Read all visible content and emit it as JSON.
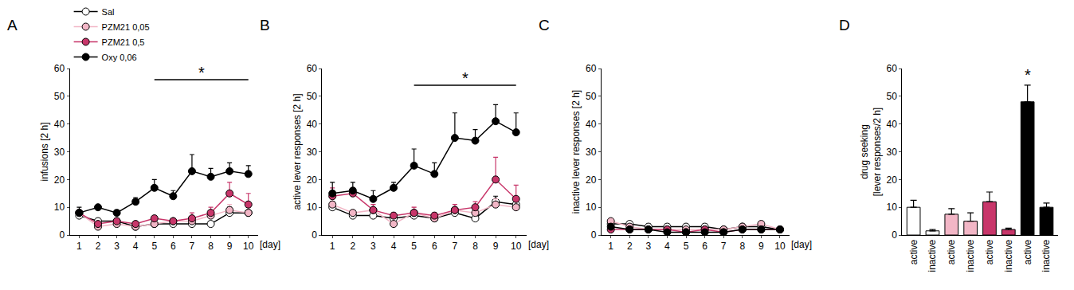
{
  "chart_data": [
    {
      "type": "line",
      "title": "A",
      "y_label": "infusions [2 h]",
      "x_label": "[day]",
      "x": [
        1,
        2,
        3,
        4,
        5,
        6,
        7,
        8,
        9,
        10
      ],
      "xlim": [
        0.5,
        10.5
      ],
      "xticks": [
        1,
        2,
        3,
        4,
        5,
        6,
        7,
        8,
        9,
        10
      ],
      "ylim": [
        0,
        60
      ],
      "yticks": [
        0,
        10,
        20,
        30,
        40,
        50,
        60
      ],
      "grid": false,
      "legend": "top left",
      "series": [
        {
          "name": "Sal",
          "color": "#ffffff",
          "values": [
            7,
            5,
            5,
            3,
            4,
            4,
            4,
            4,
            8,
            8
          ],
          "errors": [
            1,
            1,
            1,
            1,
            1,
            1,
            1,
            1,
            2,
            2
          ]
        },
        {
          "name": "PZM21 0,05",
          "color": "#f2b6c6",
          "values": [
            8,
            3,
            4,
            3,
            4,
            5,
            5,
            7,
            9,
            8
          ],
          "errors": [
            1,
            1,
            1,
            1,
            1,
            1,
            1,
            2,
            2,
            2
          ]
        },
        {
          "name": "PZM21 0,5",
          "color": "#c8366a",
          "values": [
            8,
            4,
            5,
            4,
            6,
            5,
            6,
            8,
            15,
            11
          ],
          "errors": [
            1,
            1,
            1,
            1,
            1,
            1,
            2,
            2,
            4,
            4
          ]
        },
        {
          "name": "Oxy 0,06",
          "color": "#000000",
          "values": [
            8,
            10,
            8,
            12,
            17,
            14,
            23,
            21,
            23,
            22
          ],
          "errors": [
            2,
            1,
            1,
            1.5,
            3,
            2,
            6,
            3,
            3,
            3
          ]
        }
      ],
      "annotations": [
        {
          "text": "*",
          "x": [
            5,
            10
          ],
          "y": 56
        }
      ]
    },
    {
      "type": "line",
      "title": "B",
      "y_label": "active lever responses [2 h]",
      "x_label": "[day]",
      "x": [
        1,
        2,
        3,
        4,
        5,
        6,
        7,
        8,
        9,
        10
      ],
      "xlim": [
        0.5,
        10.5
      ],
      "xticks": [
        1,
        2,
        3,
        4,
        5,
        6,
        7,
        8,
        9,
        10
      ],
      "ylim": [
        0,
        60
      ],
      "yticks": [
        0,
        10,
        20,
        30,
        40,
        50,
        60
      ],
      "grid": false,
      "series": [
        {
          "name": "Sal",
          "color": "#ffffff",
          "values": [
            10,
            7,
            7,
            6,
            7,
            6,
            8,
            6,
            12,
            11
          ],
          "errors": [
            2,
            1,
            1,
            1,
            1,
            1,
            2,
            1,
            2,
            2
          ]
        },
        {
          "name": "PZM21 0,05",
          "color": "#f2b6c6",
          "values": [
            11,
            8,
            9,
            4,
            8,
            6,
            9,
            8,
            11,
            10
          ],
          "errors": [
            2,
            1,
            2,
            1,
            2,
            1,
            2,
            2,
            2,
            2
          ]
        },
        {
          "name": "PZM21 0,5",
          "color": "#c8366a",
          "values": [
            14,
            15,
            9,
            7,
            8,
            7,
            9,
            10,
            20,
            13
          ],
          "errors": [
            3,
            2,
            2,
            1,
            2,
            1,
            2,
            2,
            8,
            5
          ]
        },
        {
          "name": "Oxy 0,06",
          "color": "#000000",
          "values": [
            15,
            16,
            13,
            17,
            25,
            22,
            35,
            34,
            41,
            37
          ],
          "errors": [
            4,
            3,
            3,
            2,
            6,
            4,
            9,
            4,
            6,
            7
          ]
        }
      ],
      "annotations": [
        {
          "text": "*",
          "x": [
            5,
            10
          ],
          "y": 54
        }
      ]
    },
    {
      "type": "line",
      "title": "C",
      "y_label": "inactive lever responses [2 h]",
      "x_label": "[day]",
      "x": [
        1,
        2,
        3,
        4,
        5,
        6,
        7,
        8,
        9,
        10
      ],
      "xlim": [
        0.5,
        10.5
      ],
      "xticks": [
        1,
        2,
        3,
        4,
        5,
        6,
        7,
        8,
        9,
        10
      ],
      "ylim": [
        0,
        60
      ],
      "yticks": [
        0,
        10,
        20,
        30,
        40,
        50,
        60
      ],
      "grid": false,
      "series": [
        {
          "name": "Sal",
          "color": "#ffffff",
          "values": [
            4,
            4,
            3,
            3,
            3,
            3,
            2,
            3,
            3,
            2
          ],
          "errors": [
            1,
            1,
            1,
            1,
            1,
            1,
            1,
            1,
            1,
            1
          ]
        },
        {
          "name": "PZM21 0,05",
          "color": "#f2b6c6",
          "values": [
            5,
            3,
            2,
            2,
            2,
            2,
            2,
            3,
            4,
            2
          ],
          "errors": [
            1,
            1,
            1,
            1,
            1,
            1,
            1,
            1,
            1,
            1
          ]
        },
        {
          "name": "PZM21 0,5",
          "color": "#c8366a",
          "values": [
            2,
            2,
            2,
            2,
            1,
            2,
            1,
            2,
            2,
            2
          ],
          "errors": [
            1,
            1,
            1,
            1,
            1,
            1,
            1,
            1,
            1,
            1
          ]
        },
        {
          "name": "Oxy 0,06",
          "color": "#000000",
          "values": [
            3,
            2,
            2,
            1,
            1,
            1,
            1,
            2,
            2,
            2
          ],
          "errors": [
            1,
            1,
            1,
            1,
            1,
            1,
            1,
            1,
            1,
            1
          ]
        }
      ]
    },
    {
      "type": "bar",
      "title": "D",
      "y_label": "drug seeking\n[lever responses/2 h]",
      "categories": [
        "active",
        "inactive",
        "active",
        "inactive",
        "active",
        "inactive",
        "active",
        "inactive"
      ],
      "values": [
        10,
        1.5,
        7.5,
        5,
        12,
        2,
        48,
        10
      ],
      "errors": [
        2.5,
        0.5,
        2,
        3,
        3.5,
        0.5,
        6,
        1.5
      ],
      "colors": [
        "#ffffff",
        "#ffffff",
        "#f2b6c6",
        "#f2b6c6",
        "#c8366a",
        "#c8366a",
        "#000000",
        "#000000"
      ],
      "ylim": [
        0,
        60
      ],
      "yticks": [
        0,
        10,
        20,
        30,
        40,
        50,
        60
      ],
      "grid": false,
      "annotations": [
        {
          "text": "*",
          "x": 6,
          "y": 55
        }
      ]
    }
  ]
}
